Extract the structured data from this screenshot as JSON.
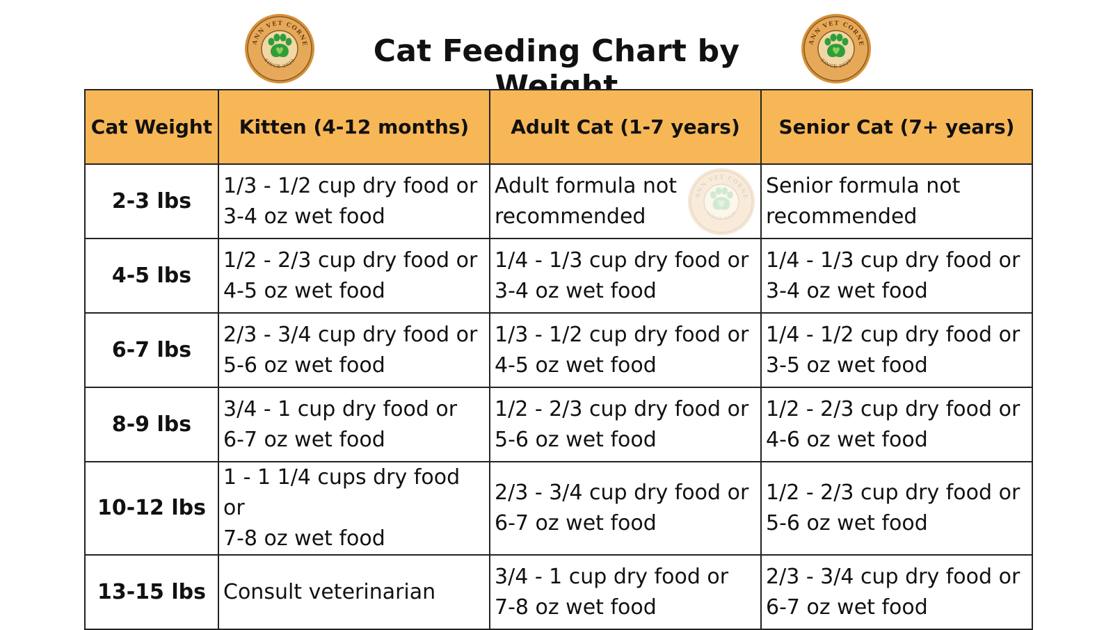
{
  "title": "Cat Feeding Chart by Weight",
  "logo": {
    "arc_text_top": "MANN VET CORNER",
    "arc_text_bottom": "SINCE 2020",
    "icon": "paw-heart-icon",
    "colors": {
      "gold": "#d7923a",
      "dark": "#7a4a14",
      "green": "#2f9e3a",
      "heart": "#8ecf5a"
    }
  },
  "colors": {
    "header_bg": "#f8b757",
    "border": "#222222"
  },
  "table": {
    "headers": [
      "Cat Weight",
      "Kitten (4-12 months)",
      "Adult Cat (1-7 years)",
      "Senior Cat (7+ years)"
    ],
    "rows": [
      {
        "weight": "2-3 lbs",
        "kitten": [
          "1/3 - 1/2 cup dry food or",
          "3-4 oz wet food"
        ],
        "adult": [
          "Adult formula not",
          "recommended"
        ],
        "senior": [
          "Senior formula not",
          "recommended"
        ]
      },
      {
        "weight": "4-5 lbs",
        "kitten": [
          "1/2 - 2/3 cup dry food or",
          "4-5 oz wet food"
        ],
        "adult": [
          "1/4 - 1/3 cup dry food or",
          "3-4 oz wet food"
        ],
        "senior": [
          "1/4 - 1/3 cup dry food or",
          "3-4 oz wet food"
        ]
      },
      {
        "weight": "6-7 lbs",
        "kitten": [
          "2/3 - 3/4 cup dry food or",
          "5-6 oz wet food"
        ],
        "adult": [
          "1/3 - 1/2 cup dry food or",
          "4-5 oz wet food"
        ],
        "senior": [
          "1/4 - 1/2 cup dry food or",
          "3-5 oz wet food"
        ]
      },
      {
        "weight": "8-9 lbs",
        "kitten": [
          "3/4 - 1 cup dry food or",
          "6-7 oz wet food"
        ],
        "adult": [
          "1/2 - 2/3 cup dry food or",
          "5-6 oz wet food"
        ],
        "senior": [
          "1/2 - 2/3 cup dry food or",
          "4-6 oz wet food"
        ]
      },
      {
        "weight": "10-12 lbs",
        "kitten": [
          "1 - 1 1/4 cups dry food or",
          "7-8 oz wet food"
        ],
        "adult": [
          "2/3 - 3/4 cup dry food or",
          "6-7 oz wet food"
        ],
        "senior": [
          "1/2 - 2/3 cup dry food or",
          "5-6 oz wet food"
        ]
      },
      {
        "weight": "13-15 lbs",
        "kitten": [
          "Consult veterinarian"
        ],
        "adult": [
          "3/4 - 1 cup dry food or",
          "7-8 oz wet food"
        ],
        "senior": [
          "2/3 - 3/4 cup dry food or",
          "6-7 oz wet food"
        ]
      }
    ]
  }
}
